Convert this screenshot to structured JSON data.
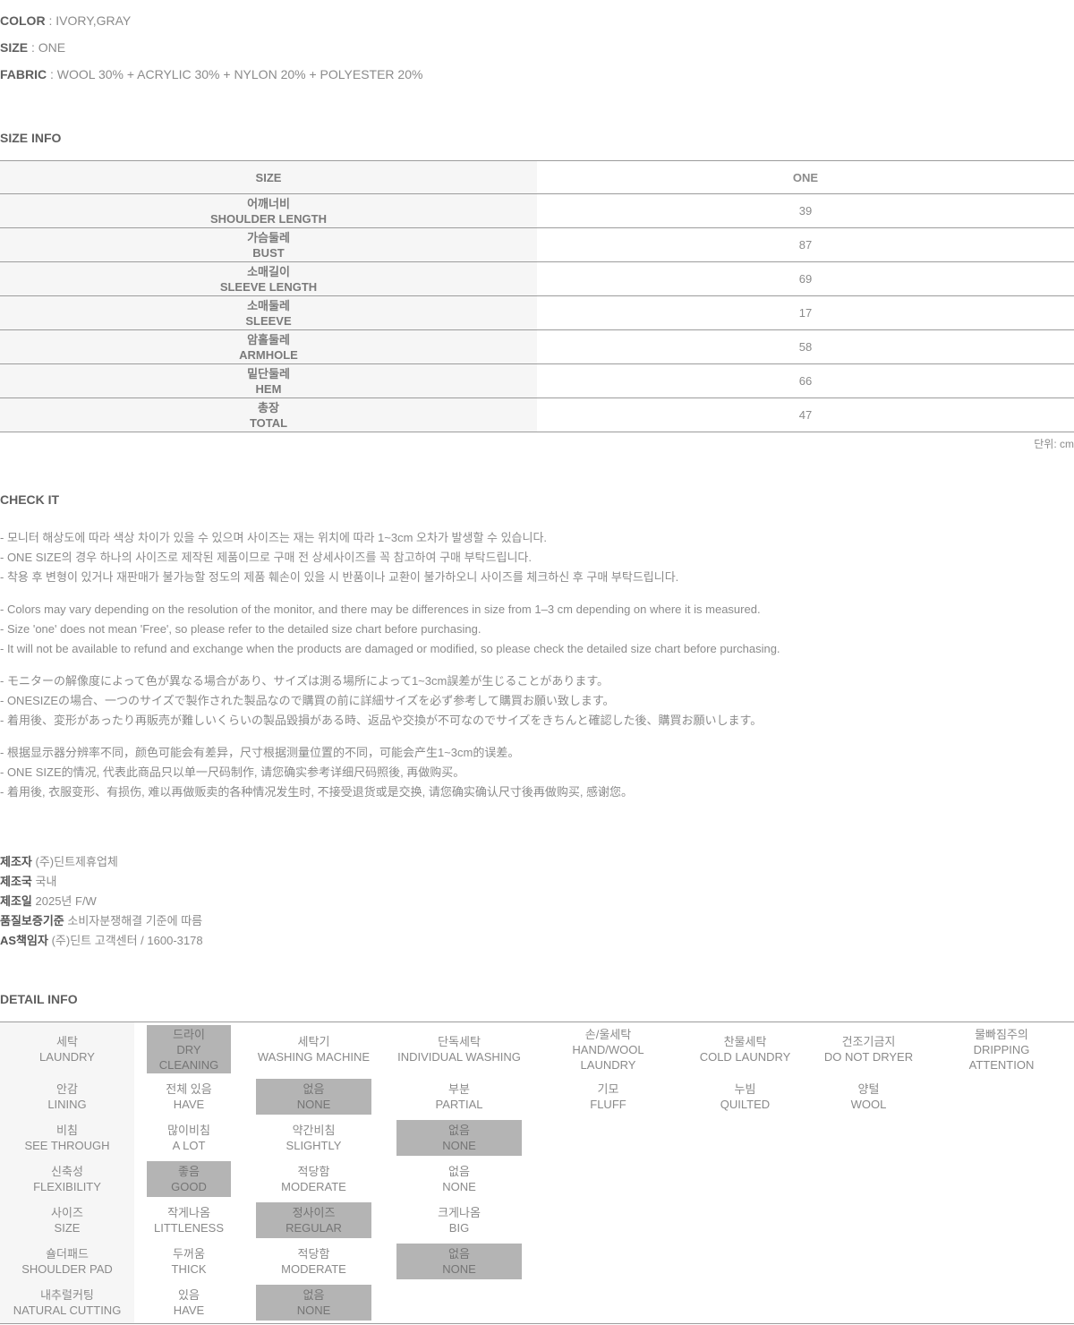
{
  "top_info": {
    "separator": " : ",
    "rows": [
      {
        "label": "COLOR",
        "value": "IVORY,GRAY"
      },
      {
        "label": "SIZE",
        "value": "ONE"
      },
      {
        "label": "FABRIC",
        "value": "WOOL 30% + ACRYLIC 30% + NYLON 20% + POLYESTER 20%"
      }
    ]
  },
  "size_info": {
    "heading": "SIZE INFO",
    "header": {
      "col1": "SIZE",
      "col2": "ONE"
    },
    "rows": [
      {
        "ko": "어깨너비",
        "en": "SHOULDER LENGTH",
        "value": "39"
      },
      {
        "ko": "가슴둘레",
        "en": "BUST",
        "value": "87"
      },
      {
        "ko": "소매길이",
        "en": "SLEEVE LENGTH",
        "value": "69"
      },
      {
        "ko": "소매둘레",
        "en": "SLEEVE",
        "value": "17"
      },
      {
        "ko": "암홀둘레",
        "en": "ARMHOLE",
        "value": "58"
      },
      {
        "ko": "밑단둘레",
        "en": "HEM",
        "value": "66"
      },
      {
        "ko": "총장",
        "en": "TOTAL",
        "value": "47"
      }
    ],
    "unit": "단위: cm"
  },
  "check_it": {
    "heading": "CHECK IT",
    "paragraphs": [
      {
        "lines": [
          "- 모니터 해상도에 따라 색상 차이가 있을 수 있으며 사이즈는 재는 위치에 따라 1~3cm 오차가 발생할 수 있습니다.",
          "- ONE SIZE의 경우 하나의 사이즈로 제작된 제품이므로 구매 전 상세사이즈를 꼭 참고하여 구매 부탁드립니다.",
          "- 착용 후 변형이 있거나 재판매가 불가능할 정도의 제품 훼손이 있을 시 반품이나 교환이 불가하오니 사이즈를 체크하신 후 구매 부탁드립니다."
        ]
      },
      {
        "lines": [
          "- Colors may vary depending on the resolution of the monitor, and there may be differences in size from 1–3 cm depending on where it is measured.",
          "- Size 'one' does not mean 'Free', so please refer to the detailed size chart before purchasing.",
          "- It will not be available to refund and exchange when the products are damaged or modified, so please check the detailed size chart before purchasing."
        ]
      },
      {
        "lines": [
          "- モニターの解像度によって色が異なる場合があり、サイズは測る場所によって1~3cm誤差が生じることがあります。",
          "- ONESIZEの場合、一つのサイズで製作された製品なので購買の前に詳細サイズを必ず参考して購買お願い致します。",
          "- 着用後、変形があったり再販売が難しいくらいの製品毀損がある時、返品や交換が不可なのでサイズをきちんと確認した後、購買お願いします。"
        ]
      },
      {
        "lines": [
          "- 根据显示器分辨率不同，颜色可能会有差异，尺寸根据测量位置的不同，可能会产生1~3cm的误差。",
          "- ONE SIZE的情况, 代表此商品只以单一尺码制作, 请您确实参考详细尺码照後, 再做购买。",
          "- 着用後, 衣服变形、有损伤, 难以再做贩卖的各种情况发生时, 不接受退货或是交换, 请您确实确认尺寸後再做购买, 感谢您。"
        ]
      }
    ]
  },
  "manufacturer": {
    "rows": [
      {
        "label": "제조자",
        "value": "(주)딘트제휴업체"
      },
      {
        "label": "제조국",
        "value": "국내"
      },
      {
        "label": "제조일",
        "value": "2025년 F/W"
      },
      {
        "label": "품질보증기준",
        "value": "소비자분쟁해결 기준에 따름"
      },
      {
        "label": "AS책임자",
        "value": "(주)딘트 고객센터 / 1600-3178"
      }
    ]
  },
  "detail_info": {
    "heading": "DETAIL INFO",
    "rows": [
      {
        "label": {
          "ko": "세탁",
          "en": "LAUNDRY"
        },
        "options": [
          {
            "ko": "드라이",
            "en": "DRY CLEANING",
            "selected": true
          },
          {
            "ko": "세탁기",
            "en": "WASHING MACHINE",
            "selected": false
          },
          {
            "ko": "단독세탁",
            "en": "INDIVIDUAL WASHING",
            "selected": false
          },
          {
            "ko": "손/울세탁",
            "en": "HAND/WOOL LAUNDRY",
            "selected": false
          },
          {
            "ko": "찬물세탁",
            "en": "COLD LAUNDRY",
            "selected": false
          },
          {
            "ko": "건조기금지",
            "en": "DO NOT DRYER",
            "selected": false
          },
          {
            "ko": "물빠짐주의",
            "en": "DRIPPING ATTENTION",
            "selected": false
          }
        ]
      },
      {
        "label": {
          "ko": "안감",
          "en": "LINING"
        },
        "options": [
          {
            "ko": "전체 있음",
            "en": "HAVE",
            "selected": false
          },
          {
            "ko": "없음",
            "en": "NONE",
            "selected": true
          },
          {
            "ko": "부분",
            "en": "PARTIAL",
            "selected": false
          },
          {
            "ko": "기모",
            "en": "FLUFF",
            "selected": false
          },
          {
            "ko": "누빔",
            "en": "QUILTED",
            "selected": false
          },
          {
            "ko": "양털",
            "en": "WOOL",
            "selected": false
          }
        ]
      },
      {
        "label": {
          "ko": "비침",
          "en": "SEE THROUGH"
        },
        "options": [
          {
            "ko": "많이비침",
            "en": "A LOT",
            "selected": false
          },
          {
            "ko": "약간비침",
            "en": "SLIGHTLY",
            "selected": false
          },
          {
            "ko": "없음",
            "en": "NONE",
            "selected": true
          }
        ]
      },
      {
        "label": {
          "ko": "신축성",
          "en": "FLEXIBILITY"
        },
        "options": [
          {
            "ko": "좋음",
            "en": "GOOD",
            "selected": true
          },
          {
            "ko": "적당함",
            "en": "MODERATE",
            "selected": false
          },
          {
            "ko": "없음",
            "en": "NONE",
            "selected": false
          }
        ]
      },
      {
        "label": {
          "ko": "사이즈",
          "en": "SIZE"
        },
        "options": [
          {
            "ko": "작게나옴",
            "en": "LITTLENESS",
            "selected": false
          },
          {
            "ko": "정사이즈",
            "en": "REGULAR",
            "selected": true
          },
          {
            "ko": "크게나옴",
            "en": "BIG",
            "selected": false
          }
        ]
      },
      {
        "label": {
          "ko": "숄더패드",
          "en": "SHOULDER PAD"
        },
        "options": [
          {
            "ko": "두꺼움",
            "en": "THICK",
            "selected": false
          },
          {
            "ko": "적당함",
            "en": "MODERATE",
            "selected": false
          },
          {
            "ko": "없음",
            "en": "NONE",
            "selected": true
          }
        ]
      },
      {
        "label": {
          "ko": "내추럴커팅",
          "en": "NATURAL CUTTING"
        },
        "options": [
          {
            "ko": "있음",
            "en": "HAVE",
            "selected": false
          },
          {
            "ko": "없음",
            "en": "NONE",
            "selected": true
          }
        ]
      }
    ]
  },
  "colors": {
    "highlight": "#b4b4b4",
    "label_bg": "#f6f6f6",
    "border": "#9c9c9c"
  }
}
